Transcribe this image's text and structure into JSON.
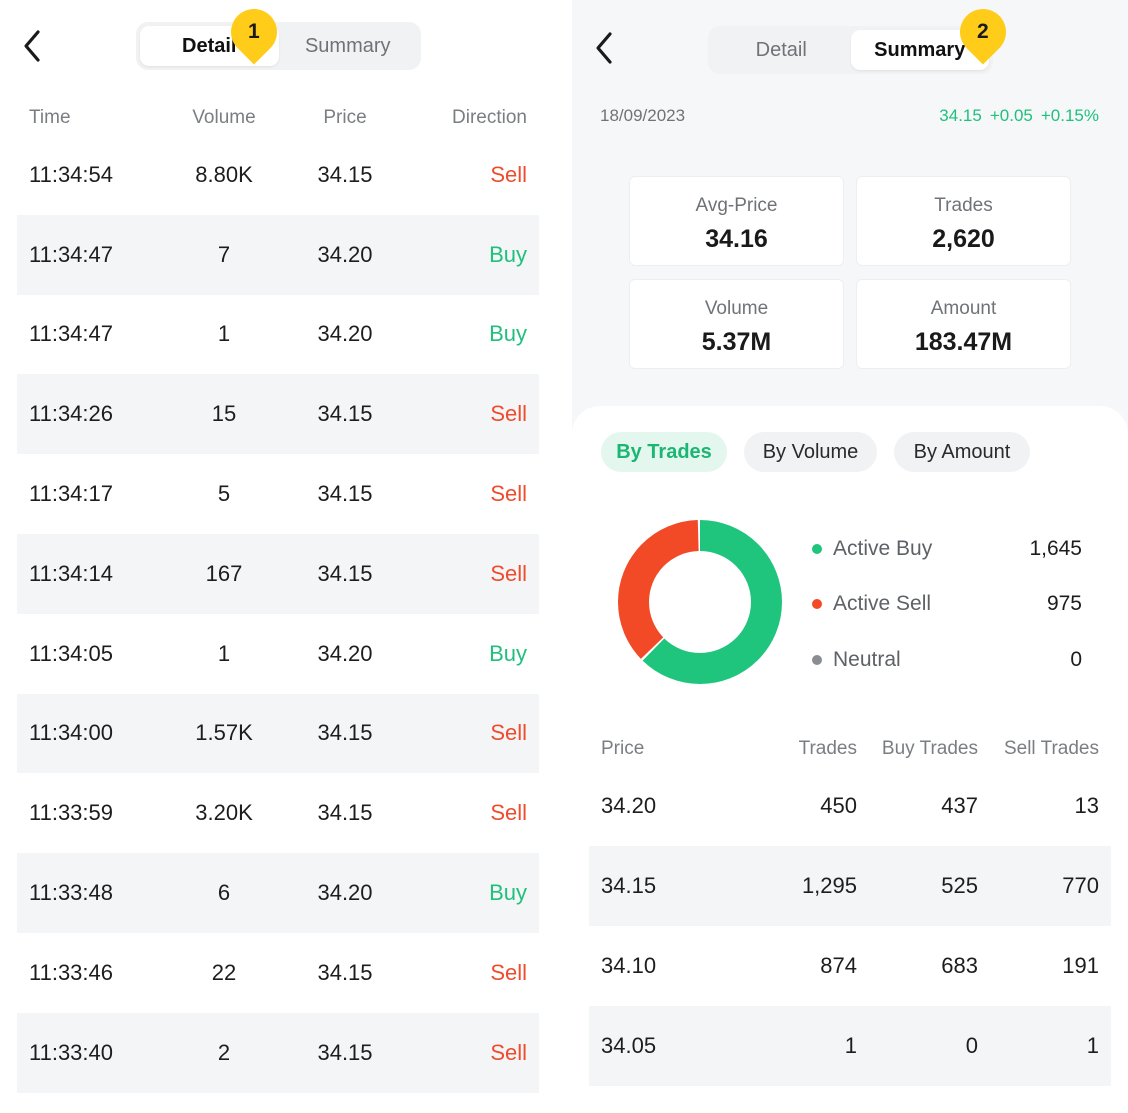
{
  "left": {
    "tabs": [
      {
        "label": "Detail",
        "active": true
      },
      {
        "label": "Summary",
        "active": false
      }
    ],
    "marker": "1",
    "columns": {
      "time": "Time",
      "volume": "Volume",
      "price": "Price",
      "direction": "Direction"
    },
    "rows": [
      {
        "time": "11:34:54",
        "volume": "8.80K",
        "price": "34.15",
        "direction": "Sell"
      },
      {
        "time": "11:34:47",
        "volume": "7",
        "price": "34.20",
        "direction": "Buy"
      },
      {
        "time": "11:34:47",
        "volume": "1",
        "price": "34.20",
        "direction": "Buy"
      },
      {
        "time": "11:34:26",
        "volume": "15",
        "price": "34.15",
        "direction": "Sell"
      },
      {
        "time": "11:34:17",
        "volume": "5",
        "price": "34.15",
        "direction": "Sell"
      },
      {
        "time": "11:34:14",
        "volume": "167",
        "price": "34.15",
        "direction": "Sell"
      },
      {
        "time": "11:34:05",
        "volume": "1",
        "price": "34.20",
        "direction": "Buy"
      },
      {
        "time": "11:34:00",
        "volume": "1.57K",
        "price": "34.15",
        "direction": "Sell"
      },
      {
        "time": "11:33:59",
        "volume": "3.20K",
        "price": "34.15",
        "direction": "Sell"
      },
      {
        "time": "11:33:48",
        "volume": "6",
        "price": "34.20",
        "direction": "Buy"
      },
      {
        "time": "11:33:46",
        "volume": "22",
        "price": "34.15",
        "direction": "Sell"
      },
      {
        "time": "11:33:40",
        "volume": "2",
        "price": "34.15",
        "direction": "Sell"
      }
    ]
  },
  "right": {
    "tabs": [
      {
        "label": "Detail",
        "active": false
      },
      {
        "label": "Summary",
        "active": true
      }
    ],
    "marker": "2",
    "date": "18/09/2023",
    "quote": {
      "price": "34.15",
      "change": "+0.05",
      "percent": "+0.15%"
    },
    "stats": [
      {
        "label": "Avg-Price",
        "value": "34.16"
      },
      {
        "label": "Trades",
        "value": "2,620"
      },
      {
        "label": "Volume",
        "value": "5.37M"
      },
      {
        "label": "Amount",
        "value": "183.47M"
      }
    ],
    "chips": [
      {
        "label": "By Trades",
        "active": true
      },
      {
        "label": "By Volume",
        "active": false
      },
      {
        "label": "By Amount",
        "active": false
      }
    ],
    "legend": [
      {
        "label": "Active Buy",
        "value": "1,645",
        "count": 1645,
        "color": "#1fc47d"
      },
      {
        "label": "Active Sell",
        "value": "975",
        "count": 975,
        "color": "#f24a26"
      },
      {
        "label": "Neutral",
        "value": "0",
        "count": 0,
        "color": "#8a8d91"
      }
    ],
    "columns": {
      "price": "Price",
      "trades": "Trades",
      "buy": "Buy Trades",
      "sell": "Sell Trades"
    },
    "rows": [
      {
        "price": "34.20",
        "trades": "450",
        "buy": "437",
        "sell": "13"
      },
      {
        "price": "34.15",
        "trades": "1,295",
        "buy": "525",
        "sell": "770"
      },
      {
        "price": "34.10",
        "trades": "874",
        "buy": "683",
        "sell": "191"
      },
      {
        "price": "34.05",
        "trades": "1",
        "buy": "0",
        "sell": "1"
      }
    ]
  }
}
